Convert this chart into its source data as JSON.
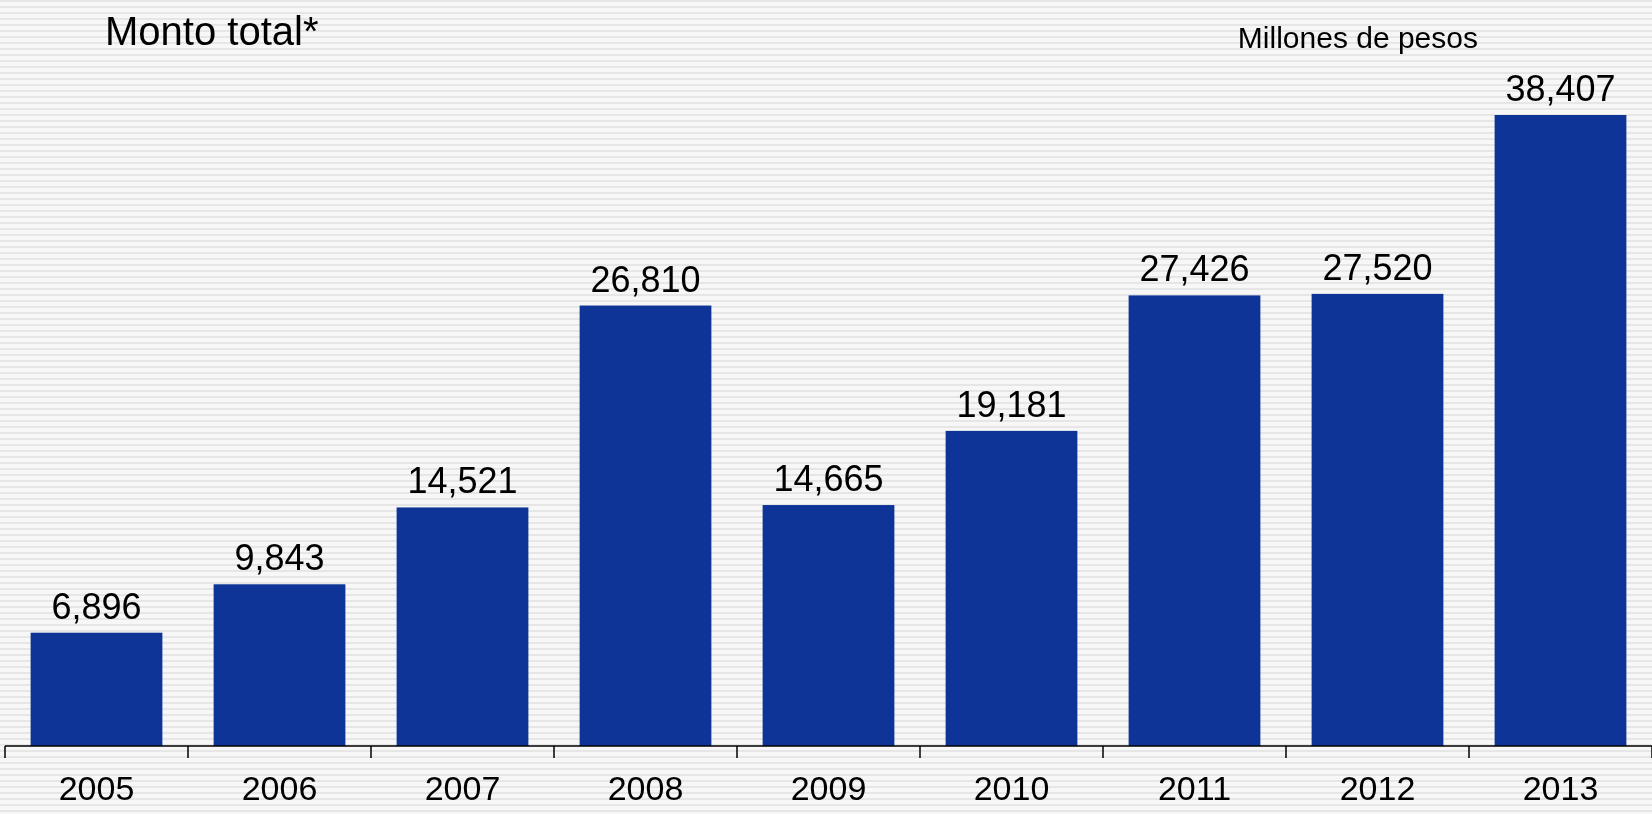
{
  "chart_data": {
    "type": "bar",
    "title": "Monto total*",
    "annotations": [
      "Millones de pesos"
    ],
    "categories": [
      "2005",
      "2006",
      "2007",
      "2008",
      "2009",
      "2010",
      "2011",
      "2012",
      "2013"
    ],
    "values": [
      6896,
      9843,
      14521,
      26810,
      14665,
      19181,
      27426,
      27520,
      38407
    ],
    "value_labels": [
      "6,896",
      "9,843",
      "14,521",
      "26,810",
      "14,665",
      "19,181",
      "27,426",
      "27,520",
      "38,407"
    ],
    "color": "#0d3496"
  }
}
